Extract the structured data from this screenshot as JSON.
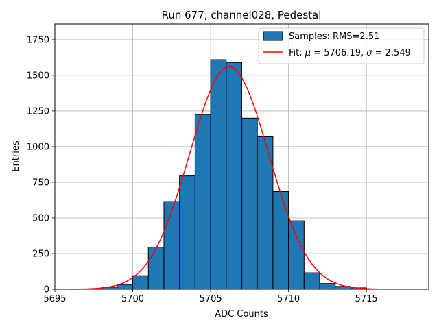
{
  "chart_data": {
    "type": "bar",
    "title": "Run 677, channel028, Pedestal",
    "xlabel": "ADC Counts",
    "ylabel": "Entries",
    "xlim": [
      5695,
      5719
    ],
    "ylim": [
      0,
      1860
    ],
    "xticks": [
      5695,
      5700,
      5705,
      5710,
      5715
    ],
    "yticks": [
      0,
      250,
      500,
      750,
      1000,
      1250,
      1500,
      1750
    ],
    "grid": true,
    "legend_position": "top-right",
    "bin_width": 1,
    "series": [
      {
        "name": "Samples: RMS=2.51",
        "type": "histogram",
        "color": "#1f77b4",
        "bins": [
          {
            "x": 5697,
            "value": 2
          },
          {
            "x": 5698,
            "value": 15
          },
          {
            "x": 5699,
            "value": 33
          },
          {
            "x": 5700,
            "value": 95
          },
          {
            "x": 5701,
            "value": 295
          },
          {
            "x": 5702,
            "value": 615
          },
          {
            "x": 5703,
            "value": 795
          },
          {
            "x": 5704,
            "value": 1225
          },
          {
            "x": 5705,
            "value": 1610
          },
          {
            "x": 5706,
            "value": 1590
          },
          {
            "x": 5707,
            "value": 1200
          },
          {
            "x": 5708,
            "value": 1070
          },
          {
            "x": 5709,
            "value": 685
          },
          {
            "x": 5710,
            "value": 480
          },
          {
            "x": 5711,
            "value": 115
          },
          {
            "x": 5712,
            "value": 40
          },
          {
            "x": 5713,
            "value": 20
          },
          {
            "x": 5714,
            "value": 10
          }
        ]
      },
      {
        "name": "Fit: μ = 5706.19, σ = 2.549",
        "legend_prefix": "Fit: ",
        "legend_mu": "μ",
        "legend_mid": " = 5706.19, ",
        "legend_sigma": "σ",
        "legend_end": " = 2.549",
        "type": "gaussian-fit",
        "color": "#ff0000",
        "mu": 5706.19,
        "sigma": 2.549,
        "peak": 1560,
        "x_range": [
          5696,
          5716
        ]
      }
    ]
  }
}
